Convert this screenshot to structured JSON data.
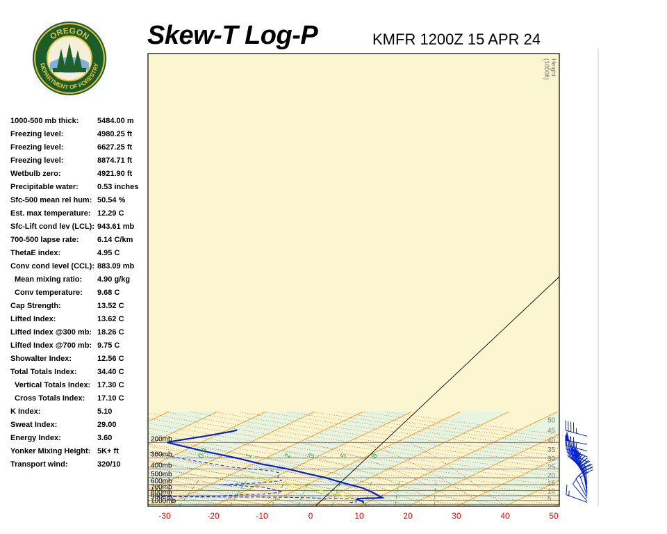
{
  "header": {
    "title": "Skew-T Log-P",
    "subtitle": "KMFR 1200Z 15 APR 24"
  },
  "logo": {
    "top_text": "OREGON",
    "bottom_text": "DEPARTMENT OF FORESTRY",
    "colors": {
      "ring": "#1a5c2a",
      "gold": "#e8c23a",
      "tree": "#1f5f2b"
    }
  },
  "indices": [
    {
      "label": "1000-500 mb thick:",
      "value": "5484.00 m",
      "indent": false
    },
    {
      "label": "Freezing level:",
      "value": "4980.25 ft",
      "indent": false
    },
    {
      "label": "Freezing level:",
      "value": "6627.25 ft",
      "indent": false
    },
    {
      "label": "Freezing level:",
      "value": "8874.71 ft",
      "indent": false
    },
    {
      "label": "Wetbulb zero:",
      "value": "4921.90 ft",
      "indent": false
    },
    {
      "label": "Precipitable water:",
      "value": "0.53 inches",
      "indent": false
    },
    {
      "label": "Sfc-500 mean rel hum:",
      "value": "50.54 %",
      "indent": false
    },
    {
      "label": "Est. max temperature:",
      "value": "12.29 C",
      "indent": false
    },
    {
      "label": "Sfc-Lift cond lev (LCL):",
      "value": "943.61 mb",
      "indent": false
    },
    {
      "label": "700-500 lapse rate:",
      "value": "6.14 C/km",
      "indent": false
    },
    {
      "label": "ThetaE index:",
      "value": "4.95 C",
      "indent": false
    },
    {
      "label": "Conv cond level (CCL):",
      "value": "883.09 mb",
      "indent": false
    },
    {
      "label": "Mean mixing ratio:",
      "value": "4.90 g/kg",
      "indent": true
    },
    {
      "label": "Conv temperature:",
      "value": "9.68 C",
      "indent": true
    },
    {
      "label": "Cap Strength:",
      "value": "13.52 C",
      "indent": false
    },
    {
      "label": "Lifted Index:",
      "value": "13.62 C",
      "indent": false
    },
    {
      "label": "Lifted Index @300 mb:",
      "value": "18.26 C",
      "indent": false
    },
    {
      "label": "Lifted Index @700 mb:",
      "value": "9.75 C",
      "indent": false
    },
    {
      "label": "Showalter Index:",
      "value": "12.56 C",
      "indent": false
    },
    {
      "label": "Total Totals Index:",
      "value": "34.40 C",
      "indent": false
    },
    {
      "label": "Vertical Totals Index:",
      "value": "17.30 C",
      "indent": true
    },
    {
      "label": "Cross Totals Index:",
      "value": "17.10 C",
      "indent": true
    },
    {
      "label": "K Index:",
      "value": "5.10",
      "indent": false
    },
    {
      "label": "Sweat Index:",
      "value": "29.00",
      "indent": false
    },
    {
      "label": "Energy Index:",
      "value": "3.60",
      "indent": false
    },
    {
      "label": "Yonker Mixing Height:",
      "value": "5K+ ft",
      "indent": false
    },
    {
      "label": "Transport wind:",
      "value": "320/10",
      "indent": false
    }
  ],
  "chart_data": {
    "type": "line",
    "title": "Skew-T Log-P",
    "subtitle": "KMFR 1200Z 15 APR 24",
    "x_axis": {
      "label": "",
      "range": [
        -30,
        50
      ],
      "ticks": [
        -30,
        -20,
        -10,
        0,
        10,
        20,
        30,
        40,
        50
      ],
      "units": "C"
    },
    "pressure_levels": [
      {
        "p": 1000,
        "label": "1000mb"
      },
      {
        "p": 900,
        "label": "900mb"
      },
      {
        "p": 800,
        "label": "800mb"
      },
      {
        "p": 700,
        "label": "700mb"
      },
      {
        "p": 600,
        "label": "600mb"
      },
      {
        "p": 500,
        "label": "500mb"
      },
      {
        "p": 400,
        "label": "400mb"
      },
      {
        "p": 300,
        "label": "300mb"
      },
      {
        "p": 200,
        "label": "200mb"
      }
    ],
    "height_axis": {
      "label_lines": [
        "Height",
        "(1000ft)"
      ],
      "ticks": [
        "0",
        "5",
        "10",
        "15",
        "20",
        "25",
        "30",
        "35",
        "40",
        "45",
        "50"
      ]
    },
    "mixing_ratio_labels": [
      "0.4",
      "1",
      "2",
      "3",
      "5",
      "8"
    ],
    "colors": {
      "temperature": "#0022cc",
      "dewpoint": "#1133dd",
      "parcel": "#e0e000",
      "isotherm": "#ff8c00",
      "dry_adiabat": "#d04000",
      "moist_adiabat": "#cc2222",
      "mixing_ratio": "#33aa33",
      "band_green": "#e6f5e0",
      "band_yellow": "#fbf6cf",
      "axis_tick": "#ff0000"
    },
    "series": [
      {
        "name": "Temperature",
        "points": [
          {
            "p": 975,
            "t": 9.5
          },
          {
            "p": 950,
            "t": 9.2
          },
          {
            "p": 925,
            "t": 8.6
          },
          {
            "p": 900,
            "t": 7.4
          },
          {
            "p": 880,
            "t": 6.6
          },
          {
            "p": 865,
            "t": 6.5
          },
          {
            "p": 855,
            "t": 8.0
          },
          {
            "p": 850,
            "t": 10.0
          },
          {
            "p": 840,
            "t": 11.0
          },
          {
            "p": 800,
            "t": 9.5
          },
          {
            "p": 750,
            "t": 7.5
          },
          {
            "p": 700,
            "t": 5.3
          },
          {
            "p": 650,
            "t": 2.6
          },
          {
            "p": 600,
            "t": -1.2
          },
          {
            "p": 550,
            "t": -5.2
          },
          {
            "p": 500,
            "t": -9.3
          },
          {
            "p": 450,
            "t": -14.8
          },
          {
            "p": 400,
            "t": -20.6
          },
          {
            "p": 350,
            "t": -28.5
          },
          {
            "p": 300,
            "t": -36.0
          },
          {
            "p": 250,
            "t": -46.0
          },
          {
            "p": 200,
            "t": -57.0
          },
          {
            "p": 195,
            "t": -56.5
          },
          {
            "p": 170,
            "t": -52.0
          },
          {
            "p": 150,
            "t": -48.5
          },
          {
            "p": 145,
            "t": -48.0
          }
        ]
      },
      {
        "name": "Dewpoint",
        "points": [
          {
            "p": 960,
            "t": 6.5
          },
          {
            "p": 940,
            "t": 7.5
          },
          {
            "p": 900,
            "t": 6.8
          },
          {
            "p": 865,
            "t": 6.0
          },
          {
            "p": 850,
            "t": -2.0
          },
          {
            "p": 830,
            "t": -10.0
          },
          {
            "p": 825,
            "t": -28.0
          },
          {
            "p": 820,
            "t": -36.0
          },
          {
            "p": 815,
            "t": -26.0
          },
          {
            "p": 780,
            "t": -19.0
          },
          {
            "p": 760,
            "t": -14.0
          },
          {
            "p": 720,
            "t": -12.0
          },
          {
            "p": 680,
            "t": -15.0
          },
          {
            "p": 640,
            "t": -18.0
          },
          {
            "p": 610,
            "t": -25.0
          },
          {
            "p": 600,
            "t": -28.0
          },
          {
            "p": 580,
            "t": -22.0
          },
          {
            "p": 560,
            "t": -19.0
          },
          {
            "p": 540,
            "t": -17.0
          },
          {
            "p": 520,
            "t": -18.0
          },
          {
            "p": 500,
            "t": -19.0
          },
          {
            "p": 470,
            "t": -20.0
          },
          {
            "p": 440,
            "t": -21.0
          },
          {
            "p": 420,
            "t": -23.0
          },
          {
            "p": 380,
            "t": -33.0
          },
          {
            "p": 320,
            "t": -44.0
          },
          {
            "p": 260,
            "t": -56.0
          },
          {
            "p": 200,
            "t": -67.0
          },
          {
            "p": 190,
            "t": -66.0
          },
          {
            "p": 175,
            "t": -72.0
          },
          {
            "p": 160,
            "t": -78.0
          },
          {
            "p": 145,
            "t": -74.0
          }
        ]
      },
      {
        "name": "Parcel",
        "points": [
          {
            "p": 900,
            "t": 7.2
          },
          {
            "p": 870,
            "t": 5.8
          },
          {
            "p": 850,
            "t": 5.0
          },
          {
            "p": 800,
            "t": 2.2
          },
          {
            "p": 750,
            "t": -1.0
          },
          {
            "p": 700,
            "t": -4.5
          },
          {
            "p": 650,
            "t": -8.5
          },
          {
            "p": 600,
            "t": -13.0
          },
          {
            "p": 550,
            "t": -18.0
          },
          {
            "p": 500,
            "t": -23.5
          },
          {
            "p": 460,
            "t": -28.0
          }
        ]
      }
    ],
    "wind_barbs": [
      {
        "p": 950,
        "dir": 290,
        "spd": 15
      },
      {
        "p": 920,
        "dir": 320,
        "spd": 10
      },
      {
        "p": 850,
        "dir": 330,
        "spd": 10
      },
      {
        "p": 800,
        "dir": 340,
        "spd": 15
      },
      {
        "p": 750,
        "dir": 350,
        "spd": 20
      },
      {
        "p": 700,
        "dir": 350,
        "spd": 25
      },
      {
        "p": 650,
        "dir": 345,
        "spd": 25
      },
      {
        "p": 600,
        "dir": 340,
        "spd": 25
      },
      {
        "p": 570,
        "dir": 335,
        "spd": 30
      },
      {
        "p": 540,
        "dir": 330,
        "spd": 30
      },
      {
        "p": 510,
        "dir": 325,
        "spd": 30
      },
      {
        "p": 480,
        "dir": 320,
        "spd": 35
      },
      {
        "p": 455,
        "dir": 315,
        "spd": 35
      },
      {
        "p": 430,
        "dir": 310,
        "spd": 40
      },
      {
        "p": 405,
        "dir": 305,
        "spd": 40
      },
      {
        "p": 380,
        "dir": 300,
        "spd": 40
      },
      {
        "p": 330,
        "dir": 295,
        "spd": 45
      },
      {
        "p": 290,
        "dir": 290,
        "spd": 45
      },
      {
        "p": 250,
        "dir": 285,
        "spd": 45
      },
      {
        "p": 210,
        "dir": 280,
        "spd": 55
      },
      {
        "p": 170,
        "dir": 285,
        "spd": 45
      }
    ]
  }
}
